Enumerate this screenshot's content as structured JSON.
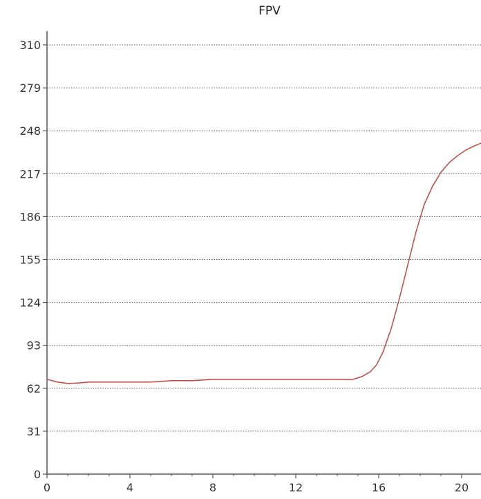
{
  "chart_data": {
    "type": "line",
    "title": "FPV",
    "xlabel": "",
    "ylabel": "",
    "x_ticks": [
      "0",
      "4",
      "8",
      "12",
      "16",
      "20"
    ],
    "y_ticks": [
      "0",
      "31",
      "62",
      "93",
      "124",
      "155",
      "186",
      "217",
      "248",
      "279",
      "310"
    ],
    "xlim": [
      0,
      21
    ],
    "ylim": [
      0,
      310
    ],
    "grid": "horizontal-dotted",
    "series": [
      {
        "color": "#c0504d",
        "x": [
          0,
          0.5,
          1,
          1.5,
          2,
          3,
          4,
          5,
          6,
          7,
          8,
          9,
          10,
          11,
          12,
          13,
          14,
          14.7,
          15.2,
          15.6,
          15.9,
          16.2,
          16.6,
          17,
          17.4,
          17.8,
          18.2,
          18.6,
          19,
          19.4,
          19.8,
          20.2,
          20.6,
          21
        ],
        "y": [
          68.5,
          66.5,
          65.5,
          65.8,
          66.5,
          66.5,
          66.5,
          66.5,
          67.5,
          67.5,
          68.5,
          68.5,
          68.5,
          68.5,
          68.5,
          68.5,
          68.5,
          68.2,
          70.5,
          74,
          79,
          88,
          105,
          127,
          151,
          175,
          195,
          208,
          218,
          225,
          230,
          234,
          237,
          239.5
        ]
      }
    ]
  }
}
